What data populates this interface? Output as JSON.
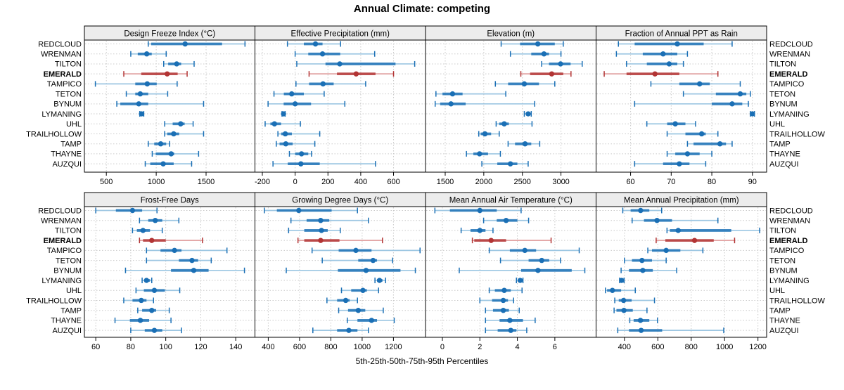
{
  "title": "Annual Climate: competing",
  "caption": "5th-25th-50th-75th-95th Percentiles",
  "colors": {
    "blue": "#1a6fb5",
    "blue_light": "#9cc6e2",
    "red": "#b23434",
    "red_light": "#e2a3a3",
    "strip_bg": "#ececec",
    "panel_border": "#000000",
    "strip_border": "#000000",
    "grid": "#c9c9c9",
    "text": "#000000"
  },
  "stations": [
    "REDCLOUD",
    "WRENMAN",
    "TILTON",
    "EMERALD",
    "TAMPICO",
    "TETON",
    "BYNUM",
    "LYMANING",
    "UHL",
    "TRAILHOLLOW",
    "TAMP",
    "THAYNE",
    "AUZQUI"
  ],
  "highlight_station": "EMERALD",
  "chart_data": {
    "type": "interval-dotplot-trellis",
    "layout": "2 rows x 4 cols, station labels on both sides, grid dotted",
    "percentiles": [
      5,
      25,
      50,
      75,
      95
    ],
    "panels": [
      {
        "title": "Design Freeze Index (°C)",
        "xlim": [
          280,
          1990
        ],
        "ticks": [
          500,
          1000,
          1500
        ],
        "values": [
          [
            920,
            950,
            1290,
            1660,
            1890
          ],
          [
            745,
            815,
            905,
            955,
            1100
          ],
          [
            1075,
            1120,
            1205,
            1250,
            1380
          ],
          [
            675,
            850,
            1110,
            1215,
            1310
          ],
          [
            390,
            790,
            910,
            1005,
            1210
          ],
          [
            700,
            790,
            840,
            920,
            1115
          ],
          [
            605,
            640,
            825,
            920,
            1475
          ],
          [
            835,
            845,
            852,
            862,
            875
          ],
          [
            1085,
            1165,
            1245,
            1285,
            1370
          ],
          [
            1085,
            1110,
            1175,
            1230,
            1475
          ],
          [
            920,
            980,
            1045,
            1100,
            1135
          ],
          [
            960,
            995,
            1150,
            1180,
            1425
          ],
          [
            890,
            940,
            1070,
            1175,
            1355
          ]
        ]
      },
      {
        "title": "Effective Precipitation (mm)",
        "xlim": [
          -245,
          795
        ],
        "ticks": [
          -200,
          0,
          200,
          400,
          600
        ],
        "values": [
          [
            -47,
            53,
            124,
            167,
            277
          ],
          [
            0,
            80,
            167,
            275,
            485
          ],
          [
            10,
            185,
            272,
            612,
            729
          ],
          [
            85,
            255,
            372,
            490,
            600
          ],
          [
            5,
            85,
            170,
            235,
            430
          ],
          [
            -129,
            -69,
            -21,
            53,
            177
          ],
          [
            -165,
            -70,
            0,
            97,
            303
          ],
          [
            -80,
            -75,
            -71,
            -66,
            -61
          ],
          [
            -183,
            -151,
            -126,
            -86,
            32
          ],
          [
            -105,
            -85,
            -60,
            -20,
            150
          ],
          [
            -115,
            -95,
            -57,
            -15,
            120
          ],
          [
            -35,
            0,
            39,
            80,
            100
          ],
          [
            -135,
            -45,
            35,
            150,
            490
          ]
        ]
      },
      {
        "title": "Elevation (m)",
        "xlim": [
          1245,
          3455
        ],
        "ticks": [
          1500,
          2000,
          2500,
          3000
        ],
        "values": [
          [
            2225,
            2470,
            2700,
            2920,
            3030
          ],
          [
            2345,
            2615,
            2780,
            2845,
            3000
          ],
          [
            2750,
            2845,
            2995,
            3125,
            3275
          ],
          [
            2480,
            2600,
            2880,
            3030,
            3130
          ],
          [
            2150,
            2315,
            2525,
            2715,
            2920
          ],
          [
            1380,
            1465,
            1595,
            1725,
            2285
          ],
          [
            1370,
            1435,
            1575,
            1765,
            2660
          ],
          [
            2525,
            2550,
            2575,
            2595,
            2615
          ],
          [
            2160,
            2200,
            2265,
            2325,
            2625
          ],
          [
            1935,
            1960,
            2015,
            2095,
            2200
          ],
          [
            2315,
            2405,
            2535,
            2615,
            2725
          ],
          [
            1775,
            1865,
            1945,
            2055,
            2215
          ],
          [
            1975,
            2175,
            2345,
            2435,
            2575
          ]
        ]
      },
      {
        "title": "Fraction of Annual PPT as Rain",
        "xlim": [
          51.5,
          93.5
        ],
        "ticks": [
          60,
          70,
          80,
          90
        ],
        "values": [
          [
            57,
            61,
            71.5,
            78,
            85
          ],
          [
            56.5,
            63,
            68,
            71.5,
            74
          ],
          [
            59,
            64,
            69.5,
            71.5,
            73
          ],
          [
            53.5,
            59,
            66,
            72,
            81.5
          ],
          [
            65,
            72,
            77,
            79.5,
            87
          ],
          [
            73,
            81,
            87,
            88.5,
            89.5
          ],
          [
            61,
            80,
            85,
            87.5,
            89
          ],
          [
            89.5,
            89.8,
            90,
            90.2,
            90.5
          ],
          [
            64,
            69,
            71,
            73.5,
            76
          ],
          [
            69,
            73.5,
            77.5,
            78.5,
            81.5
          ],
          [
            74,
            75.5,
            82,
            83.5,
            85
          ],
          [
            69,
            71,
            74,
            77,
            80
          ],
          [
            61,
            68,
            72,
            74.5,
            78.5
          ]
        ]
      },
      {
        "title": "Frost-Free Days",
        "xlim": [
          53.5,
          151
        ],
        "ticks": [
          60,
          80,
          100,
          120,
          140
        ],
        "values": [
          [
            60,
            71.5,
            81,
            86.5,
            95
          ],
          [
            85,
            90,
            94,
            98,
            107.5
          ],
          [
            81,
            83.5,
            87,
            91,
            98
          ],
          [
            85,
            87,
            92,
            100,
            121
          ],
          [
            89,
            97,
            105,
            109,
            135
          ],
          [
            89,
            107.5,
            115,
            118.5,
            126
          ],
          [
            77,
            103,
            116,
            124.5,
            145
          ],
          [
            86.5,
            88,
            89,
            91,
            92
          ],
          [
            83,
            87.5,
            93.5,
            99.5,
            108
          ],
          [
            76,
            81,
            86,
            89,
            93
          ],
          [
            84,
            86.5,
            92,
            94.5,
            102
          ],
          [
            71,
            79.5,
            85.5,
            90.5,
            103
          ],
          [
            80,
            88,
            93.5,
            98,
            109
          ]
        ]
      },
      {
        "title": "Growing Degree Days (°C)",
        "xlim": [
          315,
          1405
        ],
        "ticks": [
          400,
          600,
          800,
          1000,
          1200
        ],
        "values": [
          [
            375,
            455,
            595,
            805,
            970
          ],
          [
            545,
            645,
            735,
            790,
            1040
          ],
          [
            530,
            630,
            740,
            780,
            860
          ],
          [
            590,
            630,
            735,
            855,
            1130
          ],
          [
            680,
            850,
            960,
            1060,
            1370
          ],
          [
            745,
            975,
            1070,
            1095,
            1195
          ],
          [
            515,
            845,
            1025,
            1245,
            1340
          ],
          [
            1082,
            1095,
            1111,
            1130,
            1150
          ],
          [
            868,
            930,
            1005,
            1030,
            1105
          ],
          [
            775,
            840,
            895,
            920,
            970
          ],
          [
            850,
            910,
            975,
            1020,
            1135
          ],
          [
            905,
            970,
            1060,
            1095,
            1205
          ],
          [
            685,
            840,
            915,
            970,
            1040
          ]
        ]
      },
      {
        "title": "Mean Annual Air Temperature (°C)",
        "xlim": [
          -0.9,
          8.2
        ],
        "ticks": [
          0,
          2,
          4,
          6
        ],
        "values": [
          [
            -0.4,
            0.4,
            2.0,
            2.9,
            4.2
          ],
          [
            2.2,
            2.9,
            3.4,
            4.0,
            4.6
          ],
          [
            1.0,
            1.5,
            2.0,
            2.3,
            2.7
          ],
          [
            1.6,
            1.7,
            2.6,
            3.4,
            5.8
          ],
          [
            2.5,
            3.6,
            4.4,
            5.0,
            7.3
          ],
          [
            3.1,
            4.6,
            5.3,
            5.7,
            6.3
          ],
          [
            0.9,
            4.2,
            5.1,
            6.9,
            7.6
          ],
          [
            3.95,
            4.05,
            4.15,
            4.25,
            4.3
          ],
          [
            2.5,
            2.8,
            3.3,
            3.65,
            4.25
          ],
          [
            2.0,
            2.65,
            3.25,
            3.5,
            3.8
          ],
          [
            2.3,
            2.7,
            3.25,
            3.55,
            4.1
          ],
          [
            2.3,
            3.05,
            3.6,
            4.3,
            4.95
          ],
          [
            2.3,
            2.95,
            3.65,
            3.95,
            4.5
          ]
        ]
      },
      {
        "title": "Mean Annual Precipitation (mm)",
        "xlim": [
          230,
          1252
        ],
        "ticks": [
          400,
          600,
          800,
          1000,
          1200
        ],
        "values": [
          [
            390,
            437,
            497,
            549,
            623
          ],
          [
            446,
            517,
            595,
            685,
            960
          ],
          [
            655,
            672,
            722,
            1040,
            1210
          ],
          [
            590,
            645,
            820,
            935,
            1060
          ],
          [
            540,
            565,
            650,
            735,
            870
          ],
          [
            400,
            445,
            505,
            565,
            650
          ],
          [
            380,
            427,
            510,
            570,
            713
          ],
          [
            371,
            378,
            383,
            389,
            398
          ],
          [
            286,
            296,
            328,
            380,
            465
          ],
          [
            342,
            366,
            395,
            443,
            580
          ],
          [
            338,
            352,
            397,
            450,
            535
          ],
          [
            432,
            455,
            496,
            549,
            598
          ],
          [
            360,
            427,
            500,
            626,
            995
          ]
        ]
      }
    ]
  }
}
